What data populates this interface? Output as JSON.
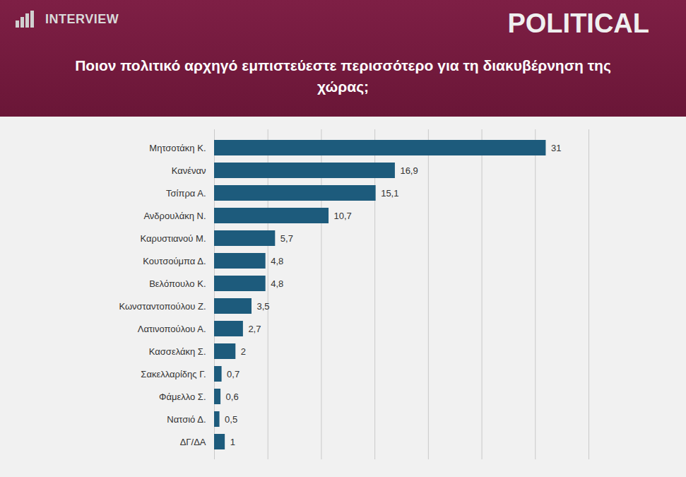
{
  "header": {
    "logo": "INTERVIEW",
    "label": "POLITICAL"
  },
  "chart_data": {
    "type": "bar",
    "orientation": "horizontal",
    "title": "Ποιον πολιτικό αρχηγό εμπιστεύεστε περισσότερο για τη διακυβέρνηση της χώρας;",
    "categories": [
      "Μητσοτάκη Κ.",
      "Κανέναν",
      "Τσίπρα Α.",
      "Ανδρουλάκη Ν.",
      "Καρυστιανού Μ.",
      "Κουτσούμπα Δ.",
      "Βελόπουλο Κ.",
      "Κωνσταντοπούλου Ζ.",
      "Λατινοπούλου Α.",
      "Κασσελάκη Σ.",
      "Σακελλαρίδης Γ.",
      "Φάμελλο Σ.",
      "Νατσιό Δ.",
      "ΔΓ/ΔΑ"
    ],
    "values": [
      31,
      16.9,
      15.1,
      10.7,
      5.7,
      4.8,
      4.8,
      3.5,
      2.7,
      2,
      0.7,
      0.6,
      0.5,
      1
    ],
    "value_labels": [
      "31",
      "16,9",
      "15,1",
      "10,7",
      "5,7",
      "4,8",
      "4,8",
      "3,5",
      "2,7",
      "2",
      "0,7",
      "0,6",
      "0,5",
      "1"
    ],
    "color": "#1d5b7c",
    "xlim": [
      0,
      35
    ],
    "xticks": [
      0,
      5,
      10,
      15,
      20,
      25,
      30,
      35
    ],
    "grid": true,
    "data_labels": true,
    "tick_labels": "y"
  }
}
